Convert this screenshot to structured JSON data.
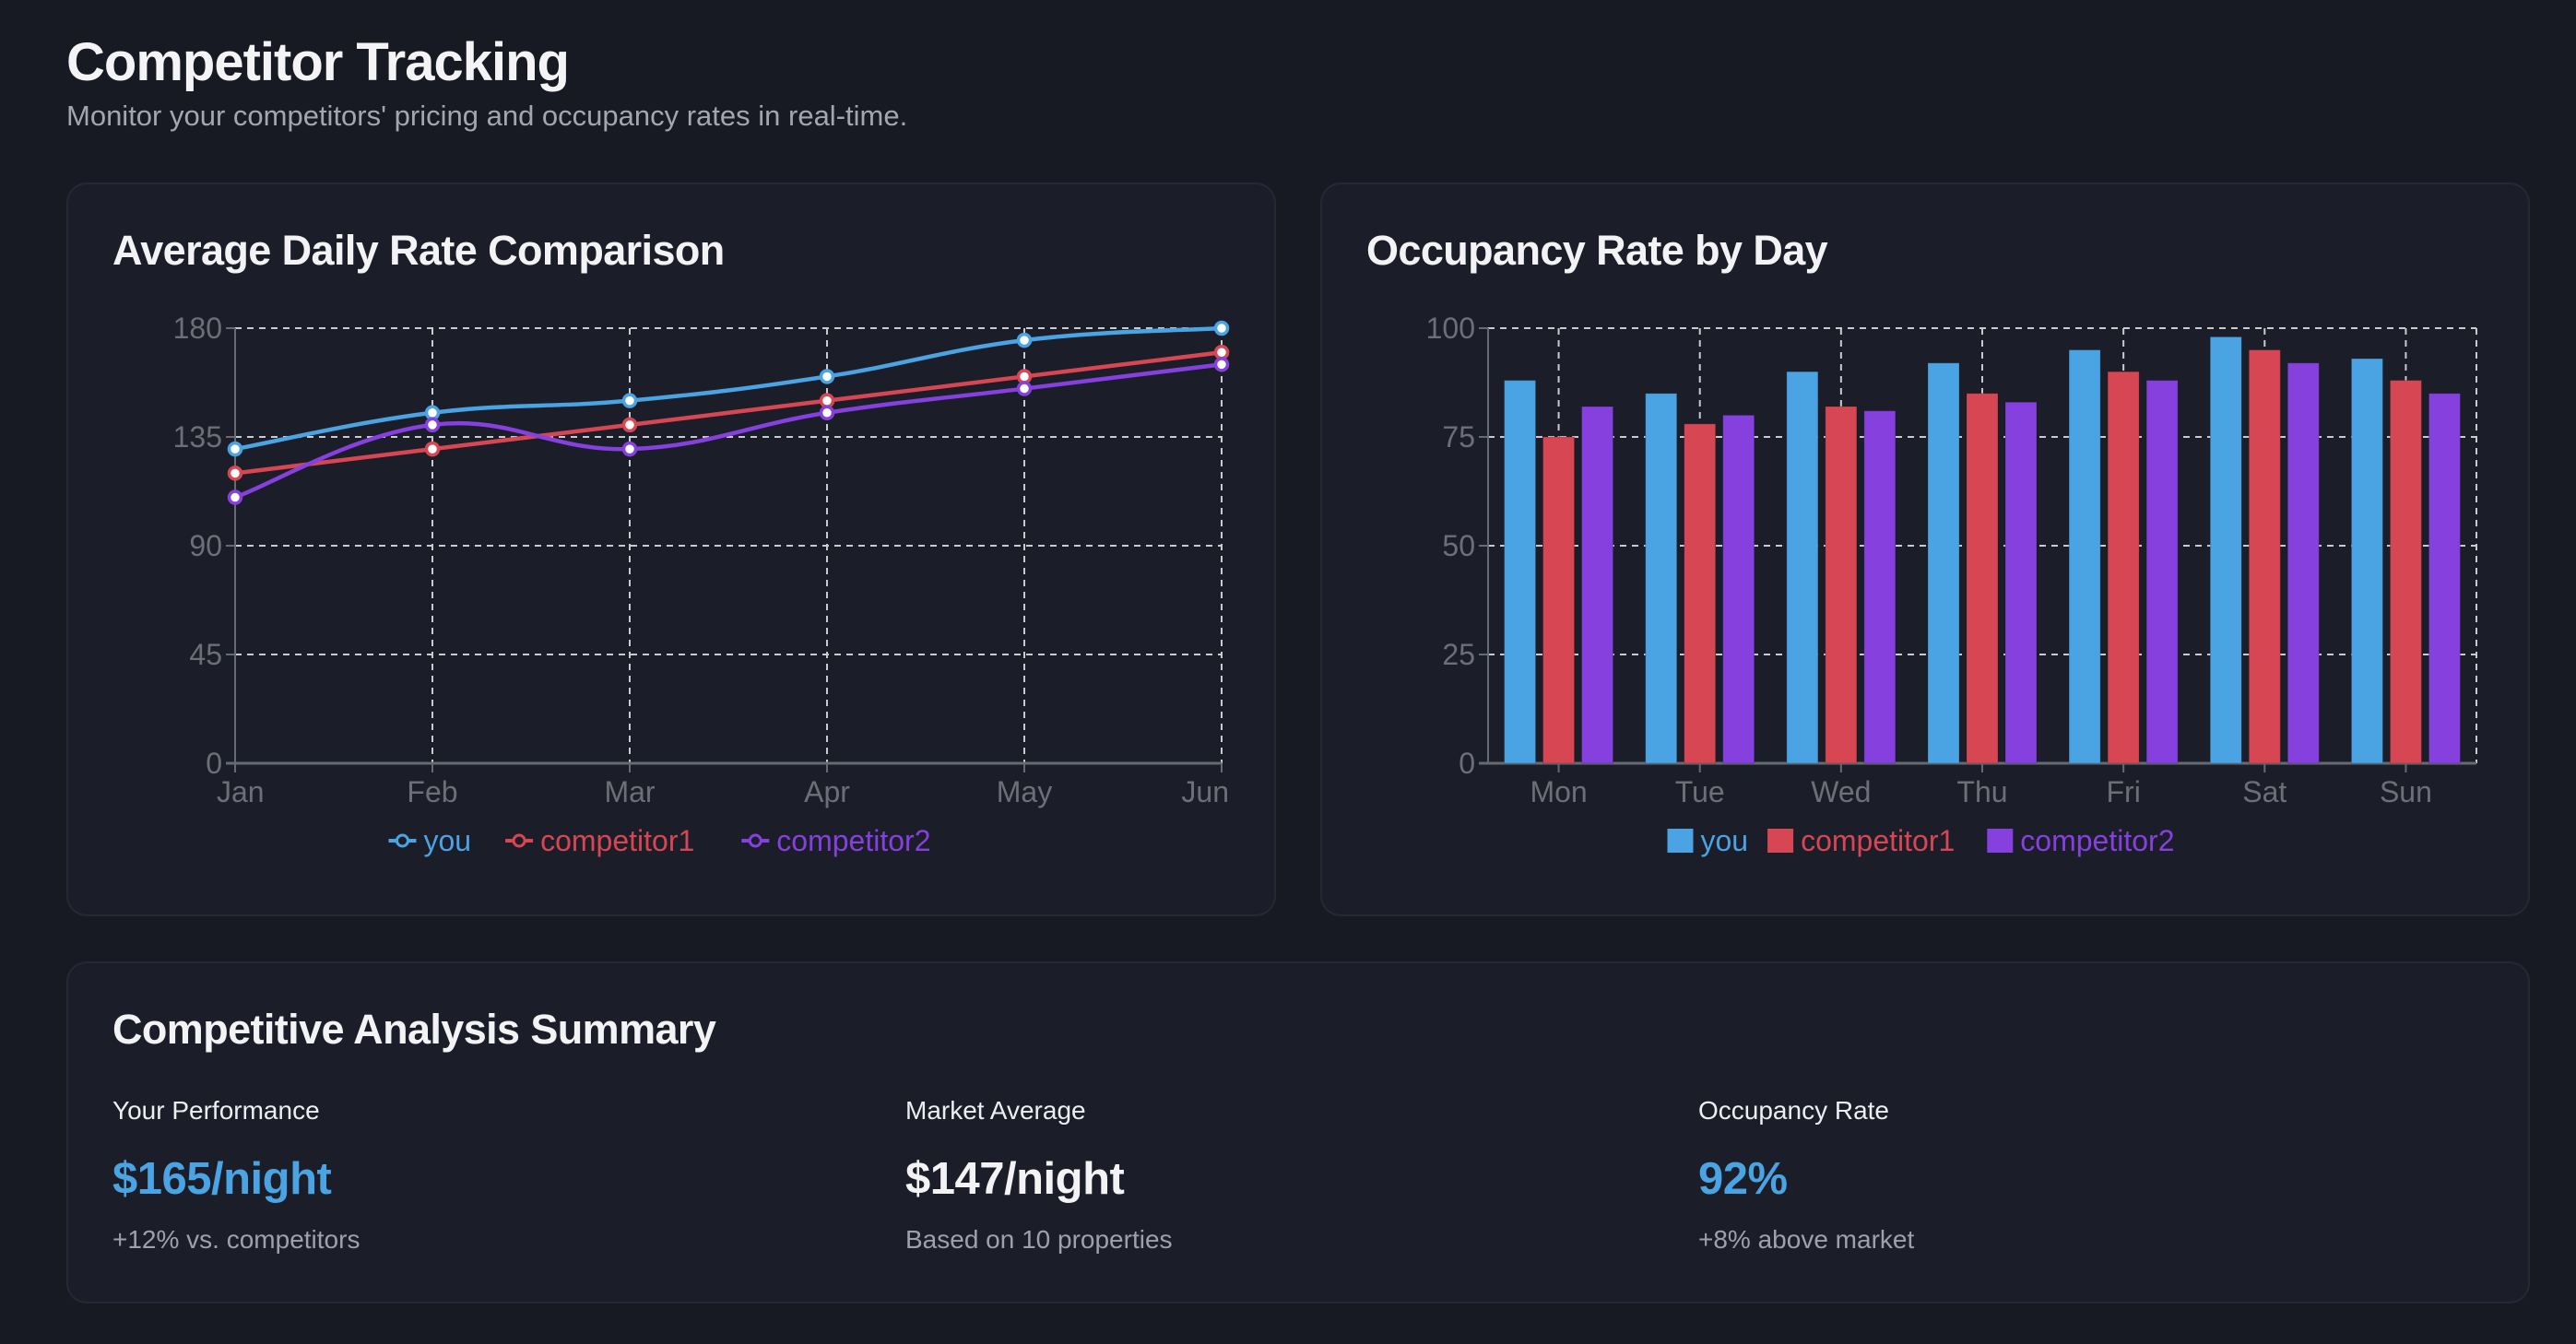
{
  "header": {
    "title": "Competitor Tracking",
    "subtitle": "Monitor your competitors' pricing and occupancy rates in real-time."
  },
  "colors": {
    "you": "#4aa3e2",
    "competitor1": "#d74753",
    "competitor2": "#8540de",
    "grid": "#c9cbd0",
    "axis": "#666a72"
  },
  "chart_data": [
    {
      "type": "line",
      "title": "Average Daily Rate Comparison",
      "categories": [
        "Jan",
        "Feb",
        "Mar",
        "Apr",
        "May",
        "Jun"
      ],
      "series": [
        {
          "name": "you",
          "values": [
            130,
            145,
            150,
            160,
            175,
            180
          ]
        },
        {
          "name": "competitor1",
          "values": [
            120,
            130,
            140,
            150,
            160,
            170
          ]
        },
        {
          "name": "competitor2",
          "values": [
            110,
            140,
            130,
            145,
            155,
            165
          ]
        }
      ],
      "xlabel": "",
      "ylabel": "",
      "ylim": [
        0,
        180
      ],
      "yticks": [
        "0",
        "45",
        "90",
        "135",
        "180"
      ],
      "grid": true,
      "legend": "bottom"
    },
    {
      "type": "bar",
      "title": "Occupancy Rate by Day",
      "categories": [
        "Mon",
        "Tue",
        "Wed",
        "Thu",
        "Fri",
        "Sat",
        "Sun"
      ],
      "series": [
        {
          "name": "you",
          "values": [
            88,
            85,
            90,
            92,
            95,
            98,
            93
          ]
        },
        {
          "name": "competitor1",
          "values": [
            75,
            78,
            82,
            85,
            90,
            95,
            88
          ]
        },
        {
          "name": "competitor2",
          "values": [
            82,
            80,
            81,
            83,
            88,
            92,
            85
          ]
        }
      ],
      "xlabel": "",
      "ylabel": "",
      "ylim": [
        0,
        100
      ],
      "yticks": [
        "0",
        "25",
        "50",
        "75",
        "100"
      ],
      "grid": true,
      "legend": "bottom"
    }
  ],
  "summary": {
    "title": "Competitive Analysis Summary",
    "items": [
      {
        "label": "Your Performance",
        "value": "$165/night",
        "note": "+12% vs. competitors",
        "value_color": "#4aa3e2"
      },
      {
        "label": "Market Average",
        "value": "$147/night",
        "note": "Based on 10 properties",
        "value_color": "#f3f3f5"
      },
      {
        "label": "Occupancy Rate",
        "value": "92%",
        "note": "+8% above market",
        "value_color": "#4aa3e2"
      }
    ]
  }
}
